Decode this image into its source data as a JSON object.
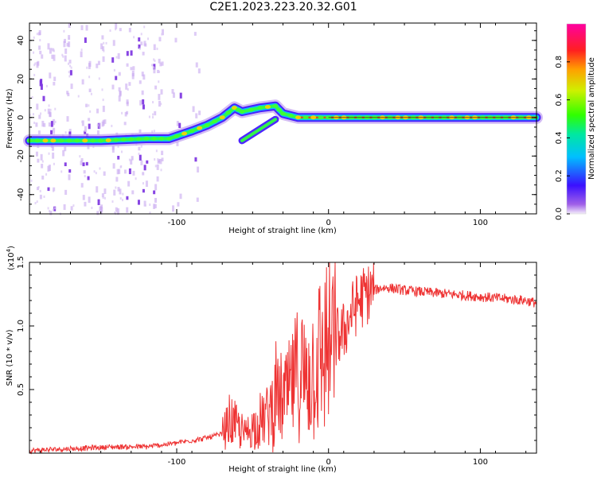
{
  "page_title": "C2E1.2023.223.20.32.G01",
  "chart_data": [
    {
      "type": "heatmap",
      "title": "",
      "xlabel": "Height of straight line (km)",
      "ylabel": "Frequency (Hz)",
      "xlim": [
        -197,
        137
      ],
      "ylim": [
        -50,
        49
      ],
      "xticks": [
        -100,
        0,
        100
      ],
      "yticks": [
        -40,
        -20,
        0,
        20,
        40
      ],
      "colorbar": {
        "label": "Normalized spectral amplitude",
        "range": [
          0.0,
          1.0
        ],
        "ticks": [
          "0.0",
          "0.2",
          "0.4",
          "0.6",
          "0.8"
        ],
        "colormap": "rainbow (purple-blue-cyan-green-yellow-red-magenta)"
      },
      "ridge": {
        "description": "dominant spectral ridge",
        "points": [
          {
            "x": -197,
            "y": -12
          },
          {
            "x": -150,
            "y": -12
          },
          {
            "x": -120,
            "y": -11
          },
          {
            "x": -105,
            "y": -11
          },
          {
            "x": -90,
            "y": -7
          },
          {
            "x": -80,
            "y": -4
          },
          {
            "x": -70,
            "y": 0
          },
          {
            "x": -62,
            "y": 5
          },
          {
            "x": -57,
            "y": 3
          },
          {
            "x": -45,
            "y": 5
          },
          {
            "x": -35,
            "y": 6
          },
          {
            "x": -30,
            "y": 2
          },
          {
            "x": -20,
            "y": 0
          },
          {
            "x": 0,
            "y": 0
          },
          {
            "x": 137,
            "y": 0
          }
        ],
        "branch": [
          {
            "x": -57,
            "y": -12
          },
          {
            "x": -45,
            "y": -6
          },
          {
            "x": -35,
            "y": -1
          }
        ]
      }
    },
    {
      "type": "line",
      "title": "",
      "xlabel": "Height of straight line (km)",
      "ylabel": "SNR (10 * v/v)",
      "ylabel_multiplier": "(x10",
      "ylabel_exponent": "4",
      "ylabel_close": ")",
      "xlim": [
        -197,
        137
      ],
      "ylim": [
        0,
        1.5
      ],
      "xticks": [
        -100,
        0,
        100
      ],
      "yticks": [
        "0.5",
        "1.0",
        "1.5"
      ],
      "color": "#ee3333",
      "series": [
        {
          "x": [
            -197,
            -180,
            -160,
            -140,
            -120,
            -100,
            -90,
            -80,
            -70,
            -65,
            -60,
            -55,
            -50,
            -45,
            -40,
            -35,
            -30,
            -25,
            -20,
            -15,
            -10,
            -5,
            0,
            5,
            10,
            15,
            20,
            25,
            30,
            35,
            40,
            50,
            60,
            70,
            80,
            90,
            100,
            110,
            120,
            130,
            137
          ],
          "y": [
            0.02,
            0.03,
            0.04,
            0.05,
            0.05,
            0.08,
            0.1,
            0.12,
            0.15,
            0.25,
            0.2,
            0.15,
            0.2,
            0.25,
            0.3,
            0.45,
            0.4,
            0.5,
            0.65,
            0.6,
            0.7,
            0.75,
            0.85,
            0.9,
            0.95,
            1.1,
            1.2,
            1.25,
            1.28,
            1.3,
            1.3,
            1.28,
            1.27,
            1.26,
            1.25,
            1.24,
            1.23,
            1.22,
            1.21,
            1.2,
            1.18
          ]
        }
      ]
    }
  ]
}
